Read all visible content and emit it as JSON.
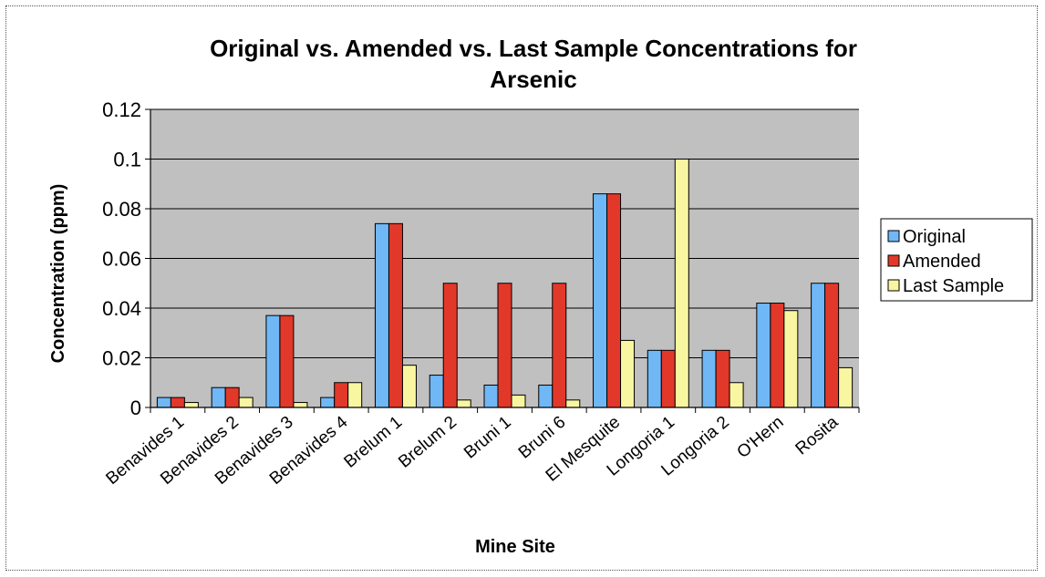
{
  "chart_data": {
    "type": "bar",
    "title_lines": [
      "Original vs. Amended vs. Last Sample Concentrations for",
      "Arsenic"
    ],
    "xlabel": "Mine Site",
    "ylabel": "Concentration (ppm)",
    "ylim": [
      0,
      0.12
    ],
    "yticks": [
      "0",
      "0.02",
      "0.04",
      "0.06",
      "0.08",
      "0.1",
      "0.12"
    ],
    "ytick_values": [
      0,
      0.02,
      0.04,
      0.06,
      0.08,
      0.1,
      0.12
    ],
    "grid": true,
    "legend_position": "right",
    "categories": [
      "Benavides 1",
      "Benavides 2",
      "Benavides 3",
      "Benavides 4",
      "Brelum 1",
      "Brelum 2",
      "Bruni 1",
      "Bruni 6",
      "El Mesquite",
      "Longoria 1",
      "Longoria 2",
      "O'Hern",
      "Rosita"
    ],
    "series": [
      {
        "name": "Original",
        "color": "#6fb8f5",
        "values": [
          0.004,
          0.008,
          0.037,
          0.004,
          0.074,
          0.013,
          0.009,
          0.009,
          0.086,
          0.023,
          0.023,
          0.042,
          0.05
        ]
      },
      {
        "name": "Amended",
        "color": "#e2382a",
        "values": [
          0.004,
          0.008,
          0.037,
          0.01,
          0.074,
          0.05,
          0.05,
          0.05,
          0.086,
          0.023,
          0.023,
          0.042,
          0.05
        ]
      },
      {
        "name": "Last Sample",
        "color": "#f8f6a0",
        "values": [
          0.002,
          0.004,
          0.002,
          0.01,
          0.017,
          0.003,
          0.005,
          0.003,
          0.027,
          0.1,
          0.01,
          0.039,
          0.016
        ]
      }
    ],
    "plot_background": "#c0c0c0"
  }
}
